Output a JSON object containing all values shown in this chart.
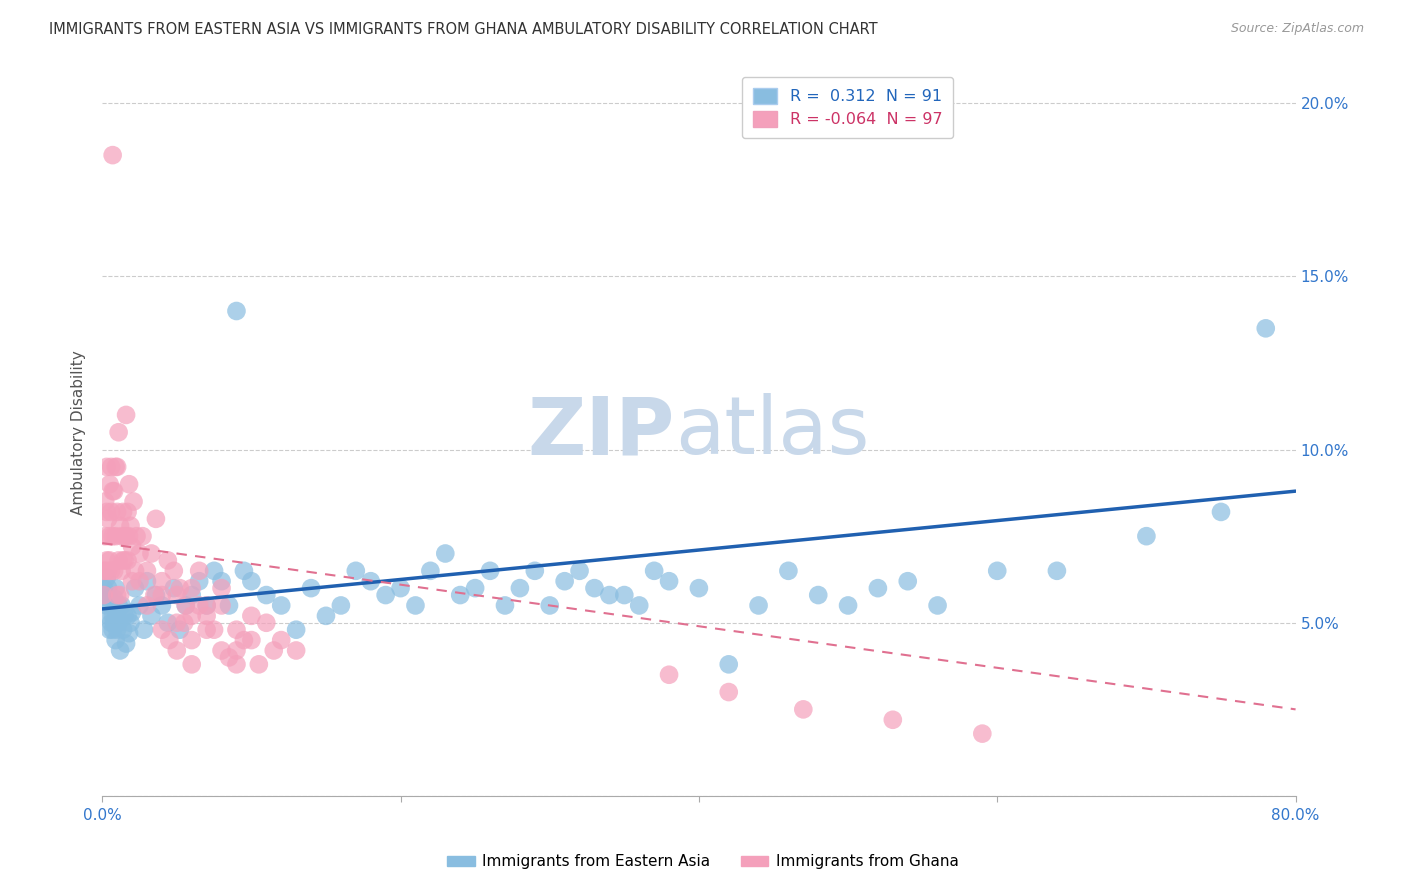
{
  "title": "IMMIGRANTS FROM EASTERN ASIA VS IMMIGRANTS FROM GHANA AMBULATORY DISABILITY CORRELATION CHART",
  "source": "Source: ZipAtlas.com",
  "ylabel": "Ambulatory Disability",
  "xlabel_east": "Immigrants from Eastern Asia",
  "xlabel_ghana": "Immigrants from Ghana",
  "xlim": [
    0,
    0.8
  ],
  "ylim": [
    0,
    0.21
  ],
  "color_east": "#89bde0",
  "color_ghana": "#f4a0bb",
  "trend_east_color": "#2060b0",
  "trend_ghana_color": "#e07090",
  "watermark_zip": "ZIP",
  "watermark_atlas": "atlas",
  "watermark_color": "#c8d8ea",
  "east_asia_x": [
    0.001,
    0.002,
    0.003,
    0.003,
    0.004,
    0.004,
    0.005,
    0.005,
    0.006,
    0.006,
    0.007,
    0.007,
    0.008,
    0.008,
    0.009,
    0.009,
    0.01,
    0.01,
    0.011,
    0.011,
    0.012,
    0.013,
    0.014,
    0.015,
    0.016,
    0.017,
    0.018,
    0.019,
    0.02,
    0.022,
    0.025,
    0.028,
    0.03,
    0.033,
    0.036,
    0.04,
    0.044,
    0.048,
    0.052,
    0.056,
    0.06,
    0.065,
    0.07,
    0.075,
    0.08,
    0.085,
    0.09,
    0.095,
    0.1,
    0.11,
    0.12,
    0.13,
    0.14,
    0.15,
    0.16,
    0.17,
    0.18,
    0.19,
    0.2,
    0.21,
    0.22,
    0.23,
    0.24,
    0.25,
    0.26,
    0.27,
    0.28,
    0.29,
    0.3,
    0.31,
    0.32,
    0.33,
    0.34,
    0.35,
    0.36,
    0.37,
    0.38,
    0.4,
    0.42,
    0.44,
    0.46,
    0.48,
    0.5,
    0.52,
    0.54,
    0.56,
    0.6,
    0.64,
    0.7,
    0.75,
    0.78
  ],
  "east_asia_y": [
    0.06,
    0.058,
    0.063,
    0.055,
    0.06,
    0.052,
    0.048,
    0.057,
    0.05,
    0.055,
    0.052,
    0.048,
    0.057,
    0.05,
    0.045,
    0.06,
    0.052,
    0.048,
    0.055,
    0.05,
    0.042,
    0.055,
    0.048,
    0.052,
    0.044,
    0.052,
    0.047,
    0.05,
    0.053,
    0.06,
    0.055,
    0.048,
    0.062,
    0.052,
    0.058,
    0.055,
    0.05,
    0.06,
    0.048,
    0.055,
    0.058,
    0.062,
    0.055,
    0.065,
    0.062,
    0.055,
    0.14,
    0.065,
    0.062,
    0.058,
    0.055,
    0.048,
    0.06,
    0.052,
    0.055,
    0.065,
    0.062,
    0.058,
    0.06,
    0.055,
    0.065,
    0.07,
    0.058,
    0.06,
    0.065,
    0.055,
    0.06,
    0.065,
    0.055,
    0.062,
    0.065,
    0.06,
    0.058,
    0.058,
    0.055,
    0.065,
    0.062,
    0.06,
    0.038,
    0.055,
    0.065,
    0.058,
    0.055,
    0.06,
    0.062,
    0.055,
    0.065,
    0.065,
    0.075,
    0.082,
    0.135
  ],
  "ghana_x": [
    0.001,
    0.001,
    0.002,
    0.002,
    0.002,
    0.003,
    0.003,
    0.003,
    0.004,
    0.004,
    0.005,
    0.005,
    0.005,
    0.006,
    0.006,
    0.006,
    0.007,
    0.007,
    0.008,
    0.008,
    0.009,
    0.009,
    0.01,
    0.01,
    0.01,
    0.011,
    0.011,
    0.012,
    0.012,
    0.013,
    0.013,
    0.014,
    0.014,
    0.015,
    0.015,
    0.016,
    0.016,
    0.017,
    0.017,
    0.018,
    0.018,
    0.019,
    0.02,
    0.021,
    0.022,
    0.023,
    0.025,
    0.027,
    0.03,
    0.033,
    0.036,
    0.04,
    0.044,
    0.048,
    0.052,
    0.056,
    0.06,
    0.065,
    0.07,
    0.08,
    0.09,
    0.1,
    0.11,
    0.12,
    0.13,
    0.05,
    0.06,
    0.07,
    0.08,
    0.09,
    0.025,
    0.035,
    0.045,
    0.055,
    0.065,
    0.075,
    0.085,
    0.095,
    0.105,
    0.115,
    0.04,
    0.05,
    0.06,
    0.07,
    0.08,
    0.09,
    0.1,
    0.02,
    0.03,
    0.04,
    0.05,
    0.06,
    0.38,
    0.42,
    0.47,
    0.53,
    0.59
  ],
  "ghana_y": [
    0.065,
    0.058,
    0.085,
    0.075,
    0.065,
    0.082,
    0.095,
    0.068,
    0.08,
    0.065,
    0.09,
    0.075,
    0.068,
    0.082,
    0.095,
    0.065,
    0.088,
    0.075,
    0.065,
    0.088,
    0.095,
    0.075,
    0.058,
    0.082,
    0.095,
    0.068,
    0.105,
    0.058,
    0.078,
    0.075,
    0.065,
    0.082,
    0.068,
    0.075,
    0.068,
    0.11,
    0.075,
    0.082,
    0.068,
    0.09,
    0.075,
    0.078,
    0.072,
    0.085,
    0.065,
    0.075,
    0.07,
    0.075,
    0.065,
    0.07,
    0.08,
    0.062,
    0.068,
    0.065,
    0.06,
    0.055,
    0.06,
    0.065,
    0.055,
    0.06,
    0.048,
    0.052,
    0.05,
    0.045,
    0.042,
    0.058,
    0.052,
    0.048,
    0.055,
    0.042,
    0.062,
    0.058,
    0.045,
    0.05,
    0.055,
    0.048,
    0.04,
    0.045,
    0.038,
    0.042,
    0.058,
    0.05,
    0.045,
    0.052,
    0.042,
    0.038,
    0.045,
    0.062,
    0.055,
    0.048,
    0.042,
    0.038,
    0.035,
    0.03,
    0.025,
    0.022,
    0.018
  ],
  "ghana_outlier_x": [
    0.007
  ],
  "ghana_outlier_y": [
    0.185
  ],
  "east_trend_x0": 0.0,
  "east_trend_y0": 0.054,
  "east_trend_x1": 0.8,
  "east_trend_y1": 0.088,
  "ghana_trend_x0": 0.0,
  "ghana_trend_y0": 0.073,
  "ghana_trend_x1": 0.8,
  "ghana_trend_y1": 0.025
}
